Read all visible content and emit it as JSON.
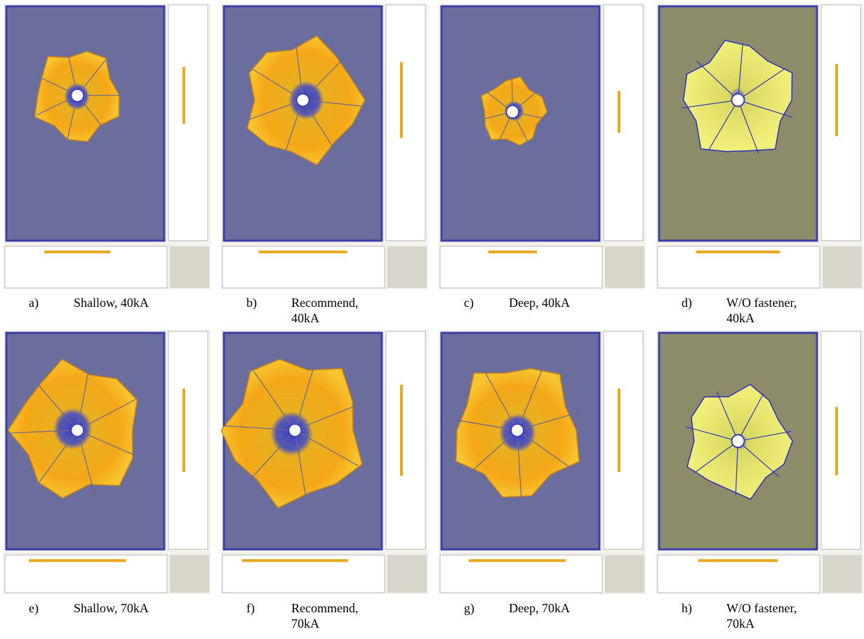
{
  "panels": [
    {
      "label": "a)",
      "caption": "Shallow, 40kA"
    },
    {
      "label": "b)",
      "caption": "Recommend, 40kA"
    },
    {
      "label": "c)",
      "caption": "Deep, 40kA"
    },
    {
      "label": "d)",
      "caption": "W/O fastener, 40kA"
    },
    {
      "label": "e)",
      "caption": "Shallow, 70kA"
    },
    {
      "label": "f)",
      "caption": "Recommend, 70kA"
    },
    {
      "label": "g)",
      "caption": "Deep, 70kA"
    },
    {
      "label": "h)",
      "caption": "W/O fastener, 70kA"
    }
  ]
}
